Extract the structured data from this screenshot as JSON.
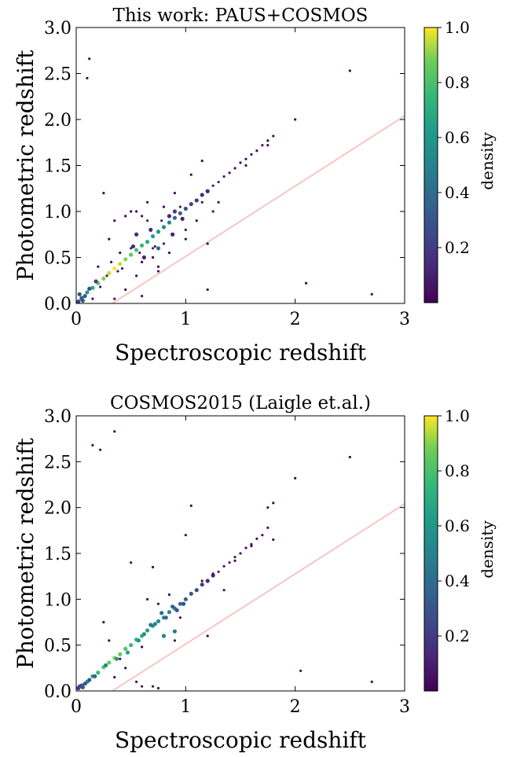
{
  "chart_data": [
    {
      "type": "scatter",
      "title": "This work: PAUS+COSMOS",
      "xlabel": "Spectroscopic redshift",
      "ylabel": "Photometric redshift",
      "xlim": [
        0,
        3
      ],
      "ylim": [
        0,
        3
      ],
      "xticks": [
        "0",
        "1",
        "2",
        "3"
      ],
      "yticks": [
        "0.0",
        "0.5",
        "1.0",
        "1.5",
        "2.0",
        "2.5",
        "3.0"
      ],
      "grid": false,
      "colorbar": {
        "label": "density",
        "range": [
          0,
          1
        ],
        "ticks": [
          "0.2",
          "0.4",
          "0.6",
          "0.8",
          "1.0"
        ],
        "colormap": "viridis"
      },
      "reference_line": {
        "x": [
          0.33,
          3.0
        ],
        "y": [
          0.0,
          2.04
        ],
        "color": "#f7c6c6"
      },
      "series": [
        {
          "x": [
            0.05,
            0.1,
            0.15,
            0.2,
            0.25,
            0.3,
            0.35,
            0.4,
            0.45,
            0.5,
            0.55,
            0.6,
            0.65,
            0.7,
            0.75,
            0.8,
            0.85,
            0.9,
            0.95,
            1.0,
            1.05,
            1.1,
            1.15,
            1.2,
            1.25,
            1.3,
            1.35,
            1.4,
            1.45,
            1.5,
            1.55,
            1.6,
            1.65,
            1.7,
            1.75,
            1.8,
            0.12,
            0.1,
            0.25,
            0.45,
            0.55,
            0.6,
            0.7,
            0.75,
            0.85,
            0.9,
            1.0,
            1.1,
            1.2,
            0.3,
            0.4,
            0.5,
            0.65,
            0.75,
            0.8,
            0.55,
            0.45,
            0.35,
            1.55,
            1.2,
            2.5,
            2.0,
            1.75,
            2.7,
            2.1,
            0.02,
            0.05,
            0.08,
            0.03,
            0.06,
            0.15,
            0.35,
            0.6,
            0.75,
            0.9,
            1.05,
            1.3,
            0.2,
            0.55,
            0.7,
            0.95,
            0.6,
            0.8,
            1.15,
            1.25,
            0.5,
            0.65,
            0.85,
            1.0,
            1.15,
            0.32,
            0.42,
            0.58,
            0.68,
            0.78,
            0.88,
            0.97,
            0.72,
            0.62,
            0.52,
            0.38,
            0.28,
            0.22,
            0.18,
            0.12
          ],
          "y": [
            0.06,
            0.12,
            0.17,
            0.22,
            0.27,
            0.33,
            0.38,
            0.43,
            0.48,
            0.53,
            0.58,
            0.63,
            0.67,
            0.73,
            0.78,
            0.83,
            0.88,
            0.93,
            0.98,
            1.03,
            1.08,
            1.12,
            1.18,
            1.22,
            1.28,
            1.32,
            1.38,
            1.42,
            1.47,
            1.53,
            1.57,
            1.62,
            1.66,
            1.72,
            1.77,
            1.82,
            2.66,
            2.45,
            1.2,
            0.95,
            1.0,
            0.45,
            0.5,
            0.4,
            0.55,
            1.2,
            0.7,
            0.9,
            0.15,
            0.7,
            0.55,
            1.0,
            1.1,
            0.35,
            1.05,
            0.3,
            0.15,
            0.9,
            1.5,
            0.65,
            2.53,
            2.0,
            1.72,
            0.1,
            0.22,
            0.02,
            0.05,
            0.08,
            0.1,
            0.03,
            0.05,
            0.05,
            0.08,
            0.6,
            1.0,
            1.4,
            1.1,
            0.4,
            0.75,
            0.6,
            1.05,
            0.95,
            0.65,
            1.55,
            1.0,
            0.6,
            0.9,
            0.95,
            0.8,
            1.1,
            0.45,
            0.38,
            0.55,
            0.8,
            0.9,
            0.75,
            0.92,
            0.62,
            0.5,
            0.62,
            0.35,
            0.3,
            0.18,
            0.24,
            0.16
          ],
          "density": [
            0.4,
            0.6,
            0.7,
            0.85,
            0.9,
            0.95,
            1.0,
            0.95,
            0.9,
            0.85,
            0.8,
            0.75,
            0.7,
            0.65,
            0.6,
            0.55,
            0.5,
            0.4,
            0.35,
            0.3,
            0.25,
            0.2,
            0.15,
            0.12,
            0.1,
            0.08,
            0.06,
            0.05,
            0.04,
            0.03,
            0.02,
            0.02,
            0.02,
            0.02,
            0.01,
            0.01,
            0.01,
            0.01,
            0.01,
            0.01,
            0.01,
            0.01,
            0.01,
            0.01,
            0.01,
            0.01,
            0.01,
            0.01,
            0.01,
            0.01,
            0.01,
            0.01,
            0.01,
            0.01,
            0.01,
            0.01,
            0.01,
            0.01,
            0.01,
            0.01,
            0.01,
            0.01,
            0.01,
            0.01,
            0.01,
            0.2,
            0.3,
            0.35,
            0.25,
            0.3,
            0.05,
            0.05,
            0.05,
            0.4,
            0.2,
            0.05,
            0.03,
            0.02,
            0.15,
            0.1,
            0.08,
            0.05,
            0.05,
            0.02,
            0.05,
            0.1,
            0.1,
            0.12,
            0.05,
            0.05,
            0.05,
            0.05,
            0.08,
            0.15,
            0.1,
            0.12,
            0.12,
            0.1,
            0.12,
            0.15,
            0.05,
            0.05,
            0.05,
            0.2,
            0.25
          ]
        }
      ]
    },
    {
      "type": "scatter",
      "title": "COSMOS2015 (Laigle et.al.)",
      "xlabel": "Spectroscopic redshift",
      "ylabel": "Photometric redshift",
      "xlim": [
        0,
        3
      ],
      "ylim": [
        0,
        3
      ],
      "xticks": [
        "0",
        "1",
        "2",
        "3"
      ],
      "yticks": [
        "0.0",
        "0.5",
        "1.0",
        "1.5",
        "2.0",
        "2.5",
        "3.0"
      ],
      "grid": false,
      "colorbar": {
        "label": "density",
        "range": [
          0,
          1
        ],
        "ticks": [
          "0.2",
          "0.4",
          "0.6",
          "0.8",
          "1.0"
        ],
        "colormap": "viridis"
      },
      "reference_line": {
        "x": [
          0.33,
          3.0
        ],
        "y": [
          0.0,
          2.04
        ],
        "color": "#f7c6c6"
      },
      "series": [
        {
          "x": [
            0.05,
            0.1,
            0.15,
            0.2,
            0.25,
            0.3,
            0.35,
            0.4,
            0.45,
            0.5,
            0.55,
            0.6,
            0.65,
            0.7,
            0.75,
            0.8,
            0.85,
            0.9,
            0.95,
            1.0,
            1.05,
            1.1,
            1.15,
            1.2,
            1.25,
            1.3,
            1.35,
            1.4,
            1.45,
            1.5,
            1.55,
            1.6,
            1.65,
            1.7,
            1.75,
            1.8,
            0.35,
            0.15,
            0.22,
            2.5,
            2.0,
            1.75,
            1.8,
            2.7,
            2.05,
            1.05,
            1.0,
            1.2,
            0.25,
            0.5,
            0.7,
            0.85,
            0.95,
            0.3,
            0.4,
            0.6,
            0.65,
            0.75,
            0.9,
            0.35,
            0.45,
            0.55,
            1.15,
            1.35,
            0.02,
            0.05,
            0.08,
            0.03,
            0.06,
            0.6,
            0.7,
            0.75,
            0.8,
            0.9,
            0.62,
            0.72,
            0.82,
            0.88,
            0.92,
            0.57,
            0.47,
            0.37,
            0.27,
            0.17,
            0.12,
            1.45,
            1.6,
            1.25,
            0.68,
            0.78,
            0.98
          ],
          "y": [
            0.05,
            0.1,
            0.16,
            0.2,
            0.26,
            0.31,
            0.36,
            0.4,
            0.46,
            0.5,
            0.56,
            0.6,
            0.66,
            0.71,
            0.76,
            0.8,
            0.86,
            0.9,
            0.95,
            1.0,
            1.06,
            1.1,
            1.16,
            1.2,
            1.26,
            1.3,
            1.36,
            1.4,
            1.46,
            1.5,
            1.56,
            1.6,
            1.66,
            1.7,
            1.78,
            2.05,
            2.83,
            2.68,
            2.63,
            2.55,
            2.32,
            2.0,
            1.65,
            0.1,
            0.22,
            2.02,
            1.7,
            0.6,
            0.75,
            1.4,
            1.35,
            1.05,
            0.8,
            0.55,
            0.35,
            0.48,
            1.0,
            0.95,
            0.55,
            0.15,
            0.25,
            0.1,
            1.2,
            1.1,
            0.03,
            0.06,
            0.08,
            0.05,
            0.04,
            0.05,
            0.05,
            0.03,
            0.6,
            0.65,
            0.62,
            0.73,
            0.8,
            0.92,
            0.88,
            0.55,
            0.42,
            0.35,
            0.28,
            0.16,
            0.12,
            1.42,
            1.58,
            1.28,
            0.72,
            0.85,
            0.95
          ],
          "density": [
            0.4,
            0.55,
            0.65,
            0.75,
            0.8,
            0.85,
            0.9,
            0.85,
            0.8,
            0.75,
            0.7,
            0.7,
            0.65,
            0.6,
            0.55,
            0.55,
            0.5,
            0.45,
            0.4,
            0.35,
            0.3,
            0.25,
            0.2,
            0.15,
            0.12,
            0.1,
            0.08,
            0.06,
            0.05,
            0.04,
            0.03,
            0.02,
            0.02,
            0.02,
            0.01,
            0.01,
            0.01,
            0.01,
            0.01,
            0.01,
            0.01,
            0.01,
            0.01,
            0.01,
            0.01,
            0.01,
            0.01,
            0.01,
            0.01,
            0.01,
            0.01,
            0.01,
            0.01,
            0.01,
            0.01,
            0.01,
            0.01,
            0.01,
            0.01,
            0.01,
            0.01,
            0.01,
            0.01,
            0.01,
            0.2,
            0.3,
            0.3,
            0.25,
            0.3,
            0.05,
            0.05,
            0.05,
            0.5,
            0.45,
            0.55,
            0.5,
            0.4,
            0.35,
            0.3,
            0.6,
            0.65,
            0.6,
            0.5,
            0.35,
            0.3,
            0.03,
            0.02,
            0.06,
            0.45,
            0.4,
            0.25
          ]
        }
      ]
    }
  ]
}
